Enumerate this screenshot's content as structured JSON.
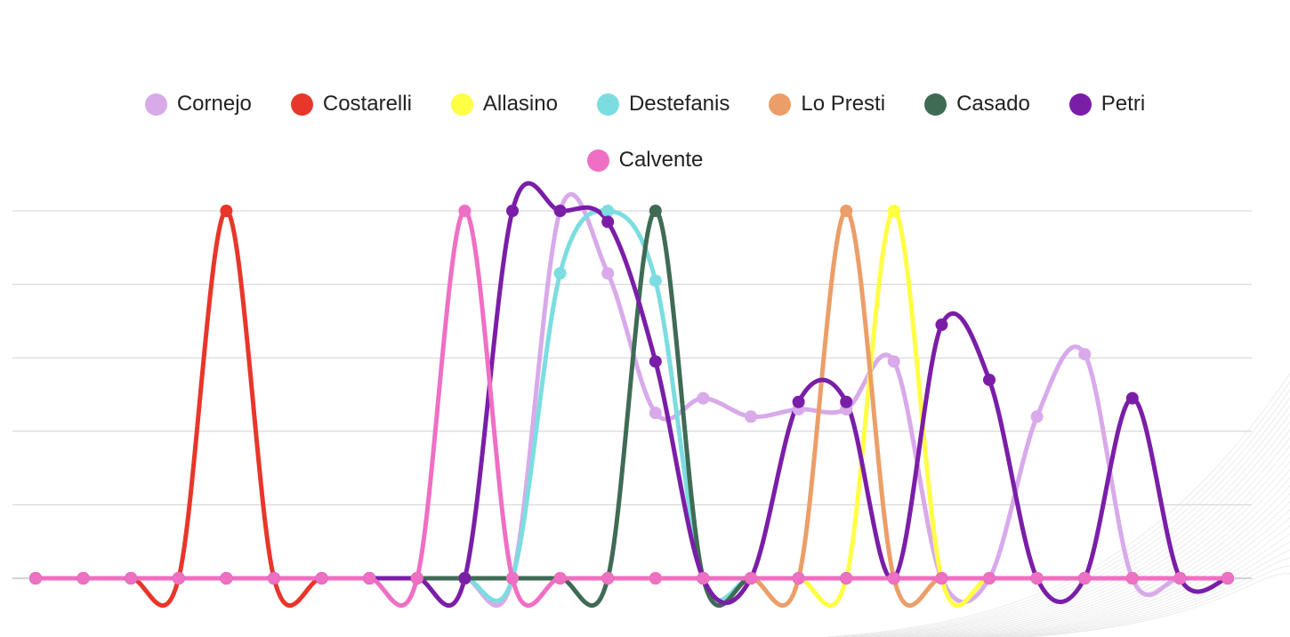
{
  "chart_data": {
    "type": "line",
    "smooth": true,
    "title": "",
    "xlabel": "",
    "ylabel": "",
    "x": [
      0,
      1,
      2,
      3,
      4,
      5,
      6,
      7,
      8,
      9,
      10,
      11,
      12,
      13,
      14,
      15,
      16,
      17,
      18,
      19,
      20,
      21,
      22,
      23,
      24,
      25
    ],
    "ylim": [
      0,
      100
    ],
    "grid": true,
    "legend_position": "top-center",
    "series": [
      {
        "name": "Cornejo",
        "color": "#d8aaea",
        "values": [
          0,
          0,
          0,
          0,
          0,
          0,
          0,
          0,
          0,
          0,
          0,
          100,
          83,
          45,
          49,
          44,
          46,
          46,
          59,
          0,
          0,
          44,
          61,
          0,
          0,
          0
        ]
      },
      {
        "name": "Costarelli",
        "color": "#e8362a",
        "values": [
          0,
          0,
          0,
          0,
          100,
          0,
          0,
          0,
          0,
          0,
          0,
          0,
          0,
          0,
          0,
          0,
          0,
          0,
          0,
          0,
          0,
          0,
          0,
          0,
          0,
          0
        ]
      },
      {
        "name": "Allasino",
        "color": "#ffff44",
        "values": [
          0,
          0,
          0,
          0,
          0,
          0,
          0,
          0,
          0,
          0,
          0,
          0,
          0,
          0,
          0,
          0,
          0,
          0,
          100,
          0,
          0,
          0,
          0,
          0,
          0,
          0
        ]
      },
      {
        "name": "Destefanis",
        "color": "#7cdde0",
        "values": [
          0,
          0,
          0,
          0,
          0,
          0,
          0,
          0,
          0,
          0,
          0,
          83,
          100,
          81,
          0,
          0,
          0,
          0,
          0,
          0,
          0,
          0,
          0,
          0,
          0,
          0
        ]
      },
      {
        "name": "Lo Presti",
        "color": "#ec9e68",
        "values": [
          0,
          0,
          0,
          0,
          0,
          0,
          0,
          0,
          0,
          0,
          0,
          0,
          0,
          0,
          0,
          0,
          0,
          100,
          0,
          0,
          0,
          0,
          0,
          0,
          0,
          0
        ]
      },
      {
        "name": "Casado",
        "color": "#3f6b55",
        "values": [
          0,
          0,
          0,
          0,
          0,
          0,
          0,
          0,
          0,
          0,
          0,
          0,
          0,
          100,
          0,
          0,
          0,
          0,
          0,
          0,
          0,
          0,
          0,
          0,
          0,
          0
        ]
      },
      {
        "name": "Petri",
        "color": "#7a1ea8",
        "values": [
          0,
          0,
          0,
          0,
          0,
          0,
          0,
          0,
          0,
          0,
          100,
          100,
          97,
          59,
          0,
          0,
          48,
          48,
          0,
          69,
          54,
          0,
          0,
          49,
          0,
          0
        ]
      },
      {
        "name": "Calvente",
        "color": "#ef6fc4",
        "values": [
          0,
          0,
          0,
          0,
          0,
          0,
          0,
          0,
          0,
          100,
          0,
          0,
          0,
          0,
          0,
          0,
          0,
          0,
          0,
          0,
          0,
          0,
          0,
          0,
          0,
          0
        ]
      }
    ]
  }
}
